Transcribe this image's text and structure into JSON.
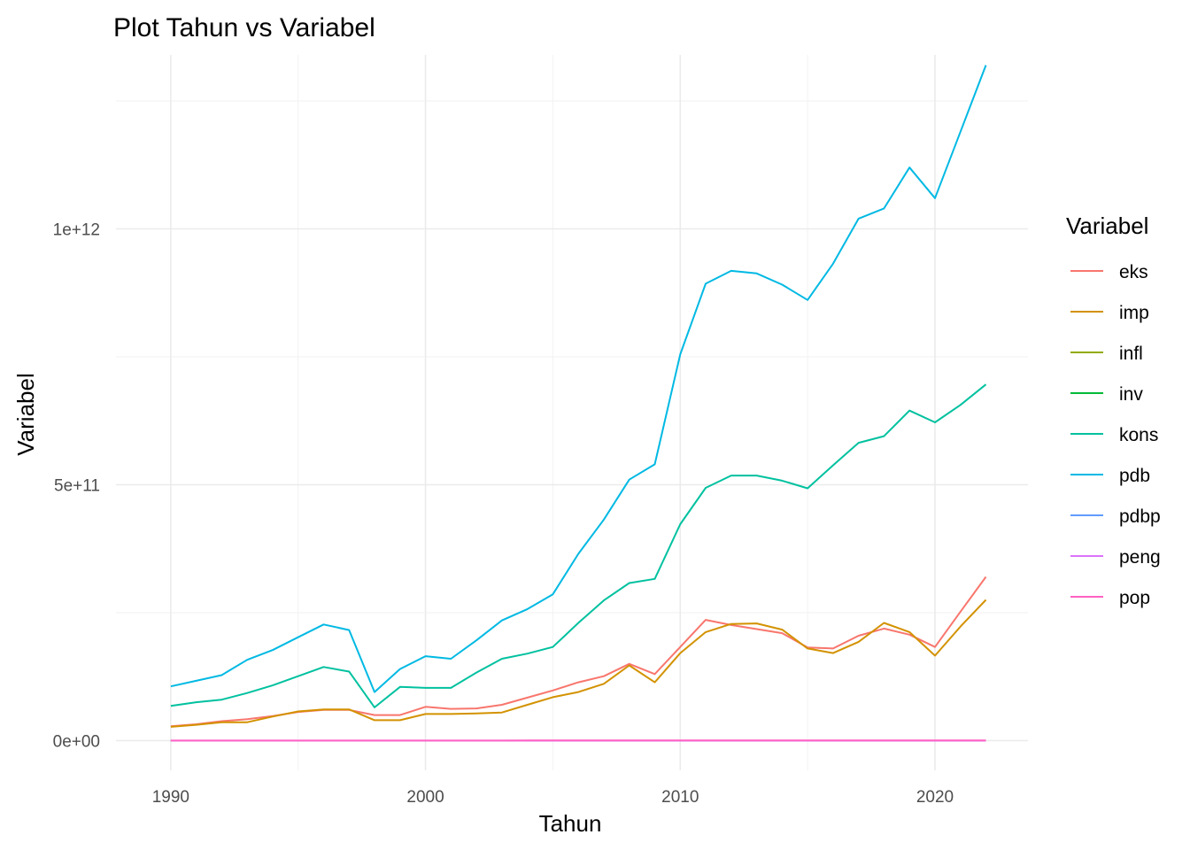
{
  "chart_data": {
    "type": "line",
    "title": "Plot Tahun vs Variabel",
    "xlabel": "Tahun",
    "ylabel": "Variabel",
    "xlim": [
      1987.85,
      2023.65
    ],
    "ylim": [
      -58000000000.0,
      1340000000000.0
    ],
    "x_ticks": [
      1990,
      2000,
      2010,
      2020
    ],
    "x_tick_labels": [
      "1990",
      "2000",
      "2010",
      "2020"
    ],
    "x_minor_ticks": [
      1995,
      2005,
      2015
    ],
    "y_ticks": [
      0,
      500000000000,
      1000000000000
    ],
    "y_tick_labels": [
      "0e+00",
      "5e+11",
      "1e+12"
    ],
    "y_minor_ticks": [
      250000000000,
      750000000000,
      1250000000000
    ],
    "grid": true,
    "legend": {
      "title": "Variabel",
      "position": "right"
    },
    "x": [
      1990,
      1991,
      1992,
      1993,
      1994,
      1995,
      1996,
      1997,
      1998,
      1999,
      2000,
      2001,
      2002,
      2003,
      2004,
      2005,
      2006,
      2007,
      2008,
      2009,
      2010,
      2011,
      2012,
      2013,
      2014,
      2015,
      2016,
      2017,
      2018,
      2019,
      2020,
      2021,
      2022
    ],
    "series": [
      {
        "name": "eks",
        "color": "#F8766D",
        "values": [
          28000000000.0,
          32000000000.0,
          38000000000.0,
          42000000000.0,
          48000000000.0,
          56000000000.0,
          60000000000.0,
          60000000000.0,
          50000000000.0,
          50000000000.0,
          66000000000.0,
          62000000000.0,
          63000000000.0,
          70000000000.0,
          84000000000.0,
          98000000000.0,
          114000000000.0,
          126000000000.0,
          150000000000.0,
          130000000000.0,
          183000000000.0,
          236000000000.0,
          226000000000.0,
          218000000000.0,
          210000000000.0,
          182000000000.0,
          180000000000.0,
          205000000000.0,
          219000000000.0,
          207000000000.0,
          183000000000.0,
          252000000000.0,
          320000000000.0
        ]
      },
      {
        "name": "imp",
        "color": "#D39200",
        "values": [
          27000000000.0,
          31000000000.0,
          36000000000.0,
          36000000000.0,
          47000000000.0,
          57000000000.0,
          61000000000.0,
          61000000000.0,
          40000000000.0,
          40000000000.0,
          52000000000.0,
          52000000000.0,
          53000000000.0,
          55000000000.0,
          70000000000.0,
          85000000000.0,
          95000000000.0,
          111000000000.0,
          147000000000.0,
          114000000000.0,
          171000000000.0,
          212000000000.0,
          228000000000.0,
          229000000000.0,
          217000000000.0,
          180000000000.0,
          171000000000.0,
          193000000000.0,
          230000000000.0,
          212000000000.0,
          166000000000.0,
          223000000000.0,
          275000000000.0
        ]
      },
      {
        "name": "infl",
        "color": "#93AA00",
        "values": [
          8,
          9,
          8,
          10,
          9,
          9,
          8,
          6,
          58,
          21,
          4,
          12,
          10,
          7,
          6,
          11,
          13,
          6,
          10,
          5,
          5,
          5,
          4,
          6,
          6,
          6,
          4,
          4,
          3,
          3,
          2,
          2,
          4
        ]
      },
      {
        "name": "inv",
        "color": "#00BA38",
        "values": [
          30,
          31,
          32,
          31,
          33,
          34,
          35,
          32,
          20,
          15,
          20,
          22,
          21,
          20,
          22,
          24,
          25,
          25,
          28,
          31,
          32,
          32,
          33,
          32,
          33,
          33,
          32,
          32,
          34,
          33,
          32,
          30,
          29
        ]
      },
      {
        "name": "kons",
        "color": "#00C19F",
        "values": [
          68000000000.0,
          75000000000.0,
          80000000000.0,
          93000000000.0,
          108000000000.0,
          126000000000.0,
          144000000000.0,
          135000000000.0,
          65000000000.0,
          105000000000.0,
          103000000000.0,
          103000000000.0,
          133000000000.0,
          160000000000.0,
          170000000000.0,
          183000000000.0,
          230000000000.0,
          274000000000.0,
          308000000000.0,
          316000000000.0,
          423000000000.0,
          494000000000.0,
          518000000000.0,
          518000000000.0,
          508000000000.0,
          493000000000.0,
          538000000000.0,
          582000000000.0,
          595000000000.0,
          645000000000.0,
          622000000000.0,
          656000000000.0,
          696000000000.0
        ]
      },
      {
        "name": "pdb",
        "color": "#00B9E3",
        "values": [
          106000000000.0,
          117000000000.0,
          128000000000.0,
          158000000000.0,
          177000000000.0,
          202000000000.0,
          227000000000.0,
          216000000000.0,
          95000000000.0,
          140000000000.0,
          165000000000.0,
          160000000000.0,
          196000000000.0,
          235000000000.0,
          257000000000.0,
          286000000000.0,
          365000000000.0,
          432000000000.0,
          510000000000.0,
          540000000000.0,
          755000000000.0,
          893000000000.0,
          918000000000.0,
          913000000000.0,
          891000000000.0,
          861000000000.0,
          932000000000.0,
          1020000000000.0,
          1040000000000.0,
          1120000000000.0,
          1060000000000.0,
          1190000000000.0,
          1320000000000.0
        ]
      },
      {
        "name": "pdbp",
        "color": "#619CFF",
        "values": [
          600,
          650,
          700,
          800,
          900,
          1000,
          1100,
          1050,
          470,
          680,
          780,
          750,
          900,
          1050,
          1150,
          1260,
          1590,
          1860,
          2170,
          2260,
          3120,
          3640,
          3700,
          3620,
          3490,
          3330,
          3560,
          3840,
          3900,
          4150,
          3870,
          4330,
          4790
        ]
      },
      {
        "name": "peng",
        "color": "#DB72FB",
        "values": [
          2.6,
          2.6,
          2.7,
          2.8,
          4.4,
          4.6,
          4.9,
          4.7,
          5.5,
          6.4,
          6.1,
          6.1,
          6.6,
          6.7,
          7.3,
          7.9,
          7.5,
          9.1,
          8.4,
          7.9,
          7.1,
          6.6,
          6.1,
          6.2,
          5.9,
          6.2,
          5.6,
          5.5,
          5.3,
          5.2,
          7.1,
          6.5,
          5.9
        ]
      },
      {
        "name": "pop",
        "color": "#FF61C3",
        "values": [
          181400000,
          184600000,
          187800000,
          190900000,
          194000000,
          197100000,
          200100000,
          203100000,
          206000000,
          208900000,
          211500000,
          214100000,
          216700000,
          219300000,
          221800000,
          224500000,
          227300000,
          230100000,
          233000000,
          235900000,
          238500000,
          241800000,
          245100000,
          248500000,
          251800000,
          255100000,
          258400000,
          261600000,
          264600000,
          267100000,
          270200000,
          272700000,
          275500000
        ]
      }
    ]
  }
}
